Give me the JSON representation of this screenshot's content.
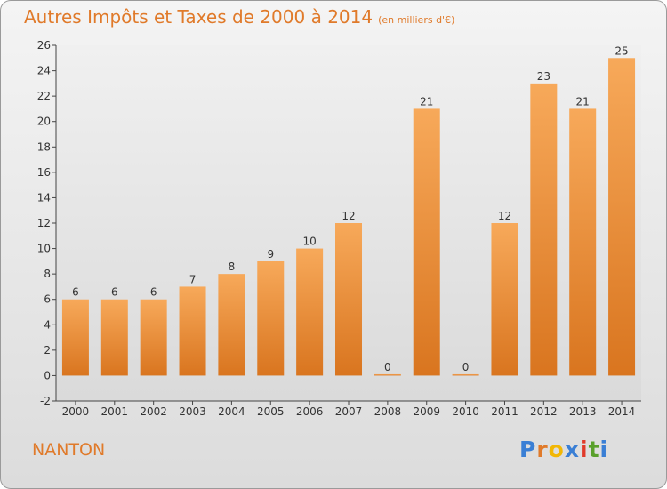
{
  "header": {
    "title": "Autres Impôts et Taxes de 2000 à 2014",
    "subtitle": "(en milliers d'€)"
  },
  "footer": {
    "commune": "NANTON",
    "logo": "Proxiti"
  },
  "colors": {
    "accent": "#e07a2a",
    "bar_top": "#f7a95a",
    "bar_bottom": "#d9751f"
  },
  "chart_data": {
    "type": "bar",
    "title": "Autres Impôts et Taxes de 2000 à 2014",
    "subtitle": "(en milliers d'€)",
    "xlabel": "",
    "ylabel": "",
    "categories": [
      "2000",
      "2001",
      "2002",
      "2003",
      "2004",
      "2005",
      "2006",
      "2007",
      "2008",
      "2009",
      "2010",
      "2011",
      "2012",
      "2013",
      "2014"
    ],
    "values": [
      6,
      6,
      6,
      7,
      8,
      9,
      10,
      12,
      0,
      21,
      0,
      12,
      23,
      21,
      25
    ],
    "ylim": [
      -2,
      26
    ],
    "yticks": [
      -2,
      0,
      2,
      4,
      6,
      8,
      10,
      12,
      14,
      16,
      18,
      20,
      22,
      24,
      26
    ],
    "grid": false,
    "legend": "none"
  }
}
